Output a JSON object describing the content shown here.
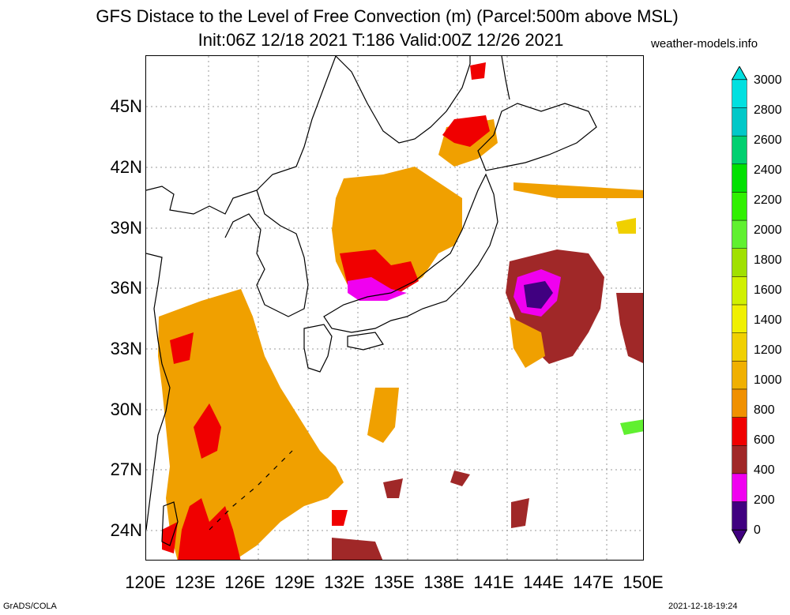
{
  "header": {
    "title_line1": "GFS Distace to the Level of Free Convection (m) (Parcel:500m above MSL)",
    "title_line2": "Init:06Z 12/18 2021 T:186 Valid:00Z 12/26 2021",
    "site": "weather-models.info"
  },
  "map": {
    "lat_labels": [
      "45N",
      "42N",
      "39N",
      "36N",
      "33N",
      "30N",
      "27N",
      "24N"
    ],
    "lon_labels": [
      "120E",
      "123E",
      "126E",
      "129E",
      "132E",
      "135E",
      "138E",
      "141E",
      "144E",
      "147E",
      "150E"
    ]
  },
  "colorbar": {
    "labels": [
      "3000",
      "2800",
      "2600",
      "2400",
      "2200",
      "2000",
      "1800",
      "1600",
      "1400",
      "1200",
      "1000",
      "800",
      "600",
      "400",
      "200",
      "0"
    ],
    "colors": [
      "#00e0e0",
      "#00c8c8",
      "#00d070",
      "#00e000",
      "#30f000",
      "#60f030",
      "#a0e000",
      "#d0f000",
      "#f0f000",
      "#f0d000",
      "#f0b000",
      "#f09000",
      "#f00000",
      "#a02828",
      "#f000f0",
      "#400080"
    ]
  },
  "footer": {
    "left": "GrADS/COLA",
    "right": "2021-12-18-19:24"
  }
}
